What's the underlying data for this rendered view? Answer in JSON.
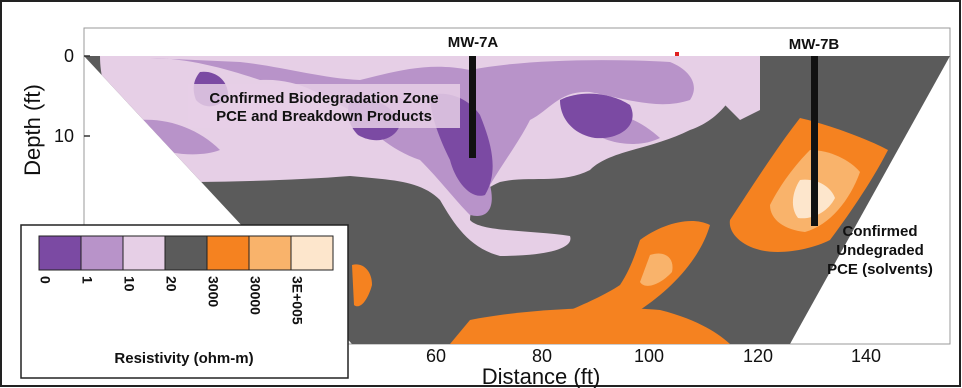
{
  "axes": {
    "ylabel": "Depth (ft)",
    "xlabel": "Distance (ft)",
    "y_ticks": [
      "0",
      "10"
    ],
    "x_ticks": [
      "60",
      "80",
      "100",
      "120",
      "140"
    ]
  },
  "wells": [
    {
      "name": "MW-7A"
    },
    {
      "name": "MW-7B"
    }
  ],
  "annotations": {
    "biodeg_line1": "Confirmed Biodegradation Zone",
    "biodeg_line2": "PCE and Breakdown Products",
    "undeg_line1": "Confirmed",
    "undeg_line2": "Undegraded",
    "undeg_line3": "PCE (solvents)"
  },
  "legend": {
    "title": "Resistivity (ohm-m)",
    "labels": [
      "0",
      "1",
      "10",
      "20",
      "3000",
      "30000",
      "3E+005"
    ],
    "colors": [
      "#7b4aa3",
      "#b893c9",
      "#e6cfe6",
      "#5b5b5b",
      "#f58220",
      "#f9b36b",
      "#fde6cc"
    ]
  },
  "colors": {
    "background_rock": "#5b5b5b",
    "purple_dark": "#7b4aa3",
    "purple_mid": "#b893c9",
    "purple_light": "#e6cfe6",
    "orange_dark": "#f58220",
    "orange_mid": "#f9b36b",
    "orange_light": "#fde6cc"
  }
}
